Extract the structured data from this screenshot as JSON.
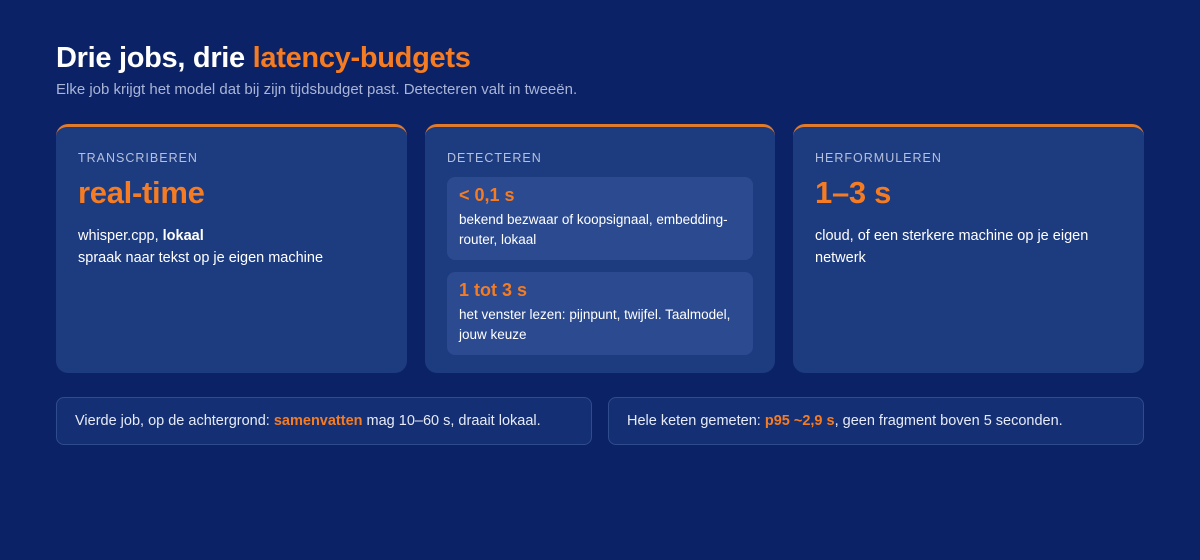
{
  "header": {
    "title_prefix": "Drie jobs, drie ",
    "title_accent": "latency-budgets",
    "subtitle": "Elke job krijgt het model dat bij zijn tijdsbudget past. Detecteren valt in tweeën."
  },
  "cards": {
    "transcriberen": {
      "eyebrow": "TRANSCRIBEREN",
      "value": "real-time",
      "line1_prefix": "whisper.cpp, ",
      "line1_bold": "lokaal",
      "line2": "spraak naar tekst op je eigen machine"
    },
    "detecteren": {
      "eyebrow": "DETECTEREN",
      "fast": {
        "value": "< 0,1 s",
        "desc": "bekend bezwaar of koopsignaal, embedding-router, lokaal"
      },
      "slow": {
        "value": "1 tot 3 s",
        "desc": "het venster lezen: pijnpunt, twijfel. Taalmodel, jouw keuze"
      }
    },
    "herformuleren": {
      "eyebrow": "HERFORMULEREN",
      "value": "1–3 s",
      "desc": "cloud, of een sterkere machine op je eigen netwerk"
    }
  },
  "notes": {
    "left": {
      "prefix": "Vierde job, op de achtergrond: ",
      "highlight": "samenvatten",
      "suffix": " mag 10–60 s, draait lokaal."
    },
    "right": {
      "prefix": "Hele keten gemeten: ",
      "highlight": "p95 ~2,9 s",
      "suffix": ", geen fragment boven 5 seconden."
    }
  },
  "colors": {
    "background": "#0b2266",
    "card": "#1d3b7f",
    "accent": "#f57c22"
  }
}
